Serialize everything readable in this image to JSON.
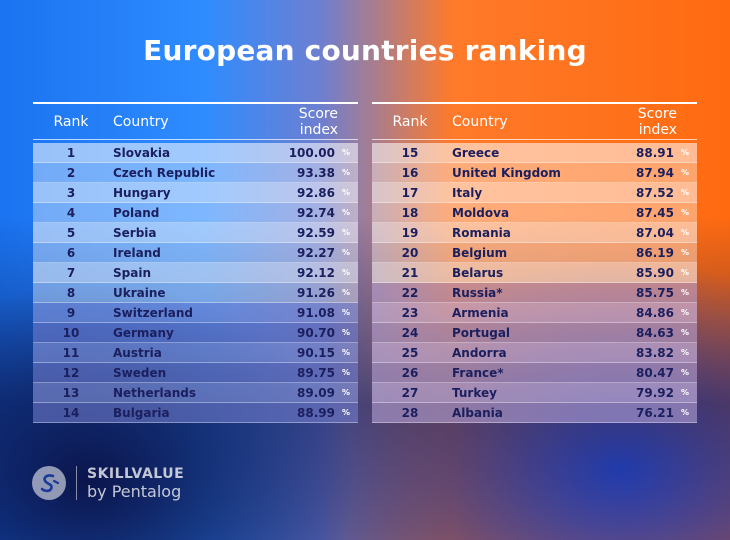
{
  "title": "European countries ranking",
  "columns": {
    "rank": "Rank",
    "country": "Country",
    "score": "Score index"
  },
  "percent_symbol": "%",
  "left_rows": [
    {
      "rank": "1",
      "country": "Slovakia",
      "score": "100.00"
    },
    {
      "rank": "2",
      "country": "Czech Republic",
      "score": "93.38"
    },
    {
      "rank": "3",
      "country": "Hungary",
      "score": "92.86"
    },
    {
      "rank": "4",
      "country": "Poland",
      "score": "92.74"
    },
    {
      "rank": "5",
      "country": "Serbia",
      "score": "92.59"
    },
    {
      "rank": "6",
      "country": "Ireland",
      "score": "92.27"
    },
    {
      "rank": "7",
      "country": "Spain",
      "score": "92.12"
    },
    {
      "rank": "8",
      "country": "Ukraine",
      "score": "91.26"
    },
    {
      "rank": "9",
      "country": "Switzerland",
      "score": "91.08"
    },
    {
      "rank": "10",
      "country": "Germany",
      "score": "90.70"
    },
    {
      "rank": "11",
      "country": "Austria",
      "score": "90.15"
    },
    {
      "rank": "12",
      "country": "Sweden",
      "score": "89.75"
    },
    {
      "rank": "13",
      "country": "Netherlands",
      "score": "89.09"
    },
    {
      "rank": "14",
      "country": "Bulgaria",
      "score": "88.99"
    }
  ],
  "right_rows": [
    {
      "rank": "15",
      "country": "Greece",
      "score": "88.91"
    },
    {
      "rank": "16",
      "country": "United Kingdom",
      "score": "87.94"
    },
    {
      "rank": "17",
      "country": "Italy",
      "score": "87.52"
    },
    {
      "rank": "18",
      "country": "Moldova",
      "score": "87.45"
    },
    {
      "rank": "19",
      "country": "Romania",
      "score": "87.04"
    },
    {
      "rank": "20",
      "country": "Belgium",
      "score": "86.19"
    },
    {
      "rank": "21",
      "country": "Belarus",
      "score": "85.90"
    },
    {
      "rank": "22",
      "country": "Russia*",
      "score": "85.75"
    },
    {
      "rank": "23",
      "country": "Armenia",
      "score": "84.86"
    },
    {
      "rank": "24",
      "country": "Portugal",
      "score": "84.63"
    },
    {
      "rank": "25",
      "country": "Andorra",
      "score": "83.82"
    },
    {
      "rank": "26",
      "country": "France*",
      "score": "80.47"
    },
    {
      "rank": "27",
      "country": "Turkey",
      "score": "79.92"
    },
    {
      "rank": "28",
      "country": "Albania",
      "score": "76.21"
    }
  ],
  "logo": {
    "line1": "SKILLVALUE",
    "line2": "by Pentalog",
    "icon": "skillvalue-logo-icon"
  }
}
